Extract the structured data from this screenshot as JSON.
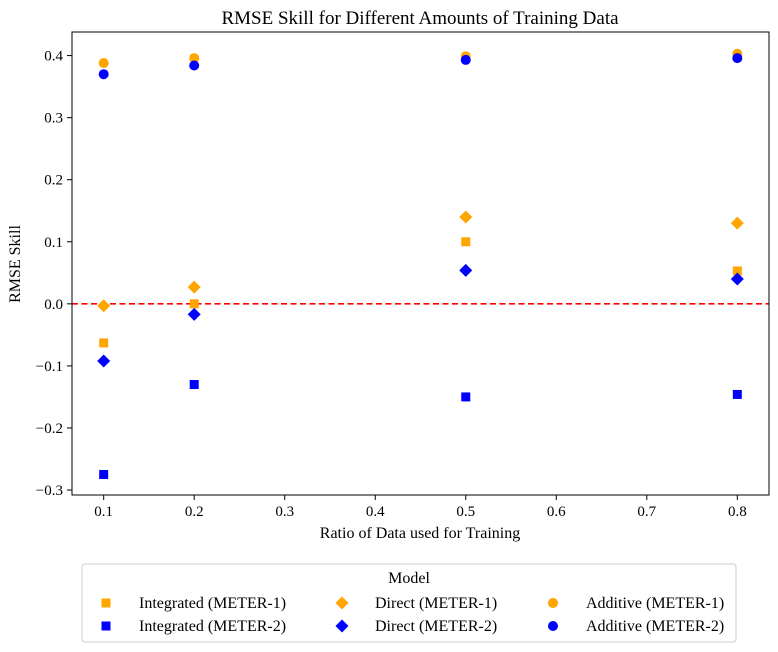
{
  "chart_data": {
    "type": "scatter",
    "title": "RMSE Skill for Different Amounts of Training Data",
    "xlabel": "Ratio of Data used for Training",
    "ylabel": "RMSE Skill",
    "xlim": [
      0.065,
      0.835
    ],
    "ylim": [
      -0.308,
      0.438
    ],
    "xticks": [
      0.1,
      0.2,
      0.3,
      0.4,
      0.5,
      0.6,
      0.7,
      0.8
    ],
    "xtick_labels": [
      "0.1",
      "0.2",
      "0.3",
      "0.4",
      "0.5",
      "0.6",
      "0.7",
      "0.8"
    ],
    "yticks": [
      -0.3,
      -0.2,
      -0.1,
      0.0,
      0.1,
      0.2,
      0.3,
      0.4
    ],
    "ytick_labels": [
      "−0.3",
      "−0.2",
      "−0.1",
      "0.0",
      "0.1",
      "0.2",
      "0.3",
      "0.4"
    ],
    "reference_line": {
      "y": 0.0,
      "color": "#ff0000",
      "style": "dashed"
    },
    "legend": {
      "title": "Model",
      "placement": "below",
      "columns": 3
    },
    "x": [
      0.1,
      0.2,
      0.5,
      0.8
    ],
    "series": [
      {
        "name": "Integrated (METER-1)",
        "marker": "square",
        "color": "#ffa500",
        "values": [
          -0.063,
          0.0,
          0.1,
          0.053
        ]
      },
      {
        "name": "Integrated (METER-2)",
        "marker": "square",
        "color": "#0000ff",
        "values": [
          -0.275,
          -0.13,
          -0.15,
          -0.146
        ]
      },
      {
        "name": "Direct (METER-1)",
        "marker": "diamond",
        "color": "#ffa500",
        "values": [
          -0.003,
          0.027,
          0.14,
          0.13
        ]
      },
      {
        "name": "Direct (METER-2)",
        "marker": "diamond",
        "color": "#0000ff",
        "values": [
          -0.092,
          -0.017,
          0.054,
          0.04
        ]
      },
      {
        "name": "Additive (METER-1)",
        "marker": "circle",
        "color": "#ffa500",
        "values": [
          0.388,
          0.396,
          0.399,
          0.403
        ]
      },
      {
        "name": "Additive (METER-2)",
        "marker": "circle",
        "color": "#0000ff",
        "values": [
          0.37,
          0.384,
          0.393,
          0.396
        ]
      }
    ]
  }
}
